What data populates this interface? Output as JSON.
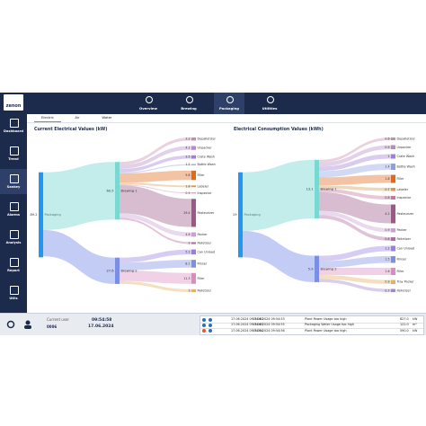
{
  "logo": "zenon",
  "sidebar": [
    "Dashboard",
    "Trend",
    "Sankey",
    "Alarms",
    "Analysis",
    "Report",
    "Utils"
  ],
  "nav": [
    "Overview",
    "Brewing",
    "Packaging",
    "Utilities"
  ],
  "tabs": [
    "Electric",
    "Air",
    "Water"
  ],
  "charts": [
    {
      "title": "Current Electrical Values (kW)",
      "root": {
        "label": "Packaging",
        "value": 89.2
      },
      "groups": [
        {
          "label": "Brewing 1",
          "value": 60.5,
          "children": [
            {
              "label": "Depalletizer",
              "value": 3.2
            },
            {
              "label": "Unpacker",
              "value": 4.1
            },
            {
              "label": "Crate Wash",
              "value": 3.5
            },
            {
              "label": "Bottle Wash",
              "value": 1.2
            },
            {
              "label": "Filler",
              "value": 9.8
            },
            {
              "label": "Labeler",
              "value": 1.8
            },
            {
              "label": "Inspector",
              "value": 0.9
            },
            {
              "label": "Pasteurizer",
              "value": 29.4
            },
            {
              "label": "Packer",
              "value": 4.6
            },
            {
              "label": "Palletizer",
              "value": 2.0
            }
          ]
        },
        {
          "label": "Brewing 2",
          "value": 27.6,
          "children": [
            {
              "label": "Can Unload",
              "value": 5.2
            },
            {
              "label": "Rinser",
              "value": 8.1
            },
            {
              "label": "Filler",
              "value": 11.3
            },
            {
              "label": "Palletizer",
              "value": 3.0
            }
          ]
        }
      ]
    },
    {
      "title": "Electrical Consumption Values (kWh)",
      "root": {
        "label": "Packaging",
        "value": 19.0
      },
      "groups": [
        {
          "label": "Brewing 1",
          "value": 13.1,
          "children": [
            {
              "label": "Depalletizer",
              "value": 0.6
            },
            {
              "label": "Unpacker",
              "value": 0.9
            },
            {
              "label": "Crate Wash",
              "value": 1.0
            },
            {
              "label": "Bottle Wash",
              "value": 1.4
            },
            {
              "label": "Filler",
              "value": 1.8
            },
            {
              "label": "Labeler",
              "value": 0.7
            },
            {
              "label": "Inspector",
              "value": 0.8
            },
            {
              "label": "Pasteurizer",
              "value": 4.2
            },
            {
              "label": "Packer",
              "value": 0.9
            },
            {
              "label": "Palletizer",
              "value": 0.8
            }
          ]
        },
        {
          "label": "Brewing 2",
          "value": 5.9,
          "children": [
            {
              "label": "Can Unload",
              "value": 1.2
            },
            {
              "label": "Rinser",
              "value": 1.5
            },
            {
              "label": "Filler",
              "value": 1.6
            },
            {
              "label": "Tray Packer",
              "value": 0.9
            },
            {
              "label": "Palletizer",
              "value": 0.7
            }
          ]
        }
      ]
    }
  ],
  "status": {
    "user_label": "Current user",
    "user": "0006",
    "time": "09:54:58",
    "date": "17.06.2024"
  },
  "alarms": [
    [
      "17.06.2024 09:54:40",
      "17.06.2024 09:54:53",
      "Plant Power Usage too high",
      "827.0",
      "kW"
    ],
    [
      "17.06.2024 09:54:45",
      "17.06.2024 09:54:55",
      "Packaging Water Usage too high",
      "122.0",
      "m³"
    ],
    [
      "17.06.2024 09:54:54",
      "17.06.2024 09:54:56",
      "Plant Power Usage too high",
      "590.0",
      "kW"
    ]
  ]
}
